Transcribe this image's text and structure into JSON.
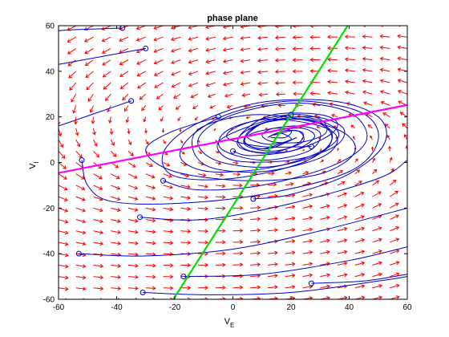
{
  "chart_data": {
    "type": "line",
    "title": "phase plane",
    "xlabel": "V",
    "xlabel_subscript": "E",
    "ylabel": "V",
    "ylabel_subscript": "I",
    "xlim": [
      -60,
      60
    ],
    "ylim": [
      -60,
      60
    ],
    "xticks": [
      -60,
      -40,
      -20,
      0,
      20,
      40,
      60
    ],
    "yticks": [
      -60,
      -40,
      -20,
      0,
      20,
      40,
      60
    ],
    "grid": false,
    "colors": {
      "vector_field": "#ff0000",
      "trajectory": "#0000c8",
      "nullcline_e": "#ff00ff",
      "nullcline_i": "#00dd00",
      "axes": "#000000"
    },
    "series": [
      {
        "type": "line",
        "role": "nullcline",
        "color": "#ff00ff",
        "x": [
          -60,
          60
        ],
        "y": [
          -4.6,
          25.2
        ]
      },
      {
        "type": "line",
        "role": "nullcline",
        "color": "#00dd00",
        "x": [
          -20.5,
          39.5
        ],
        "y": [
          -60,
          60
        ]
      }
    ],
    "vector_field": {
      "x_start": -60,
      "x_step": 6,
      "y_start": -60,
      "y_step": 5,
      "center": [
        12,
        10
      ],
      "spin": 0.1,
      "decay": 0.02,
      "max_len": 6
    },
    "initial_points": [
      [
        -38,
        59
      ],
      [
        -30,
        50
      ],
      [
        -35,
        27
      ],
      [
        -5,
        20
      ],
      [
        20,
        21
      ],
      [
        0,
        5
      ],
      [
        27,
        7
      ],
      [
        -52,
        1
      ],
      [
        -24,
        -8
      ],
      [
        7,
        -16
      ],
      [
        -32,
        -24
      ],
      [
        -53,
        -40
      ],
      [
        -17,
        -50
      ],
      [
        -31,
        -57
      ],
      [
        27,
        -53
      ]
    ],
    "trajectories": [
      {
        "x": [
          -38,
          -58,
          -60
        ],
        "y": [
          59,
          58,
          57
        ]
      },
      {
        "x": [
          -30,
          -60
        ],
        "y": [
          50,
          43
        ]
      },
      {
        "x": [
          -35,
          -60
        ],
        "y": [
          27,
          16
        ]
      },
      {
        "x": [
          -5,
          -22,
          -30,
          -20,
          5,
          30,
          42,
          35,
          10,
          -10,
          -14,
          -8,
          10,
          30,
          36,
          30,
          12,
          -2,
          -4,
          10,
          26,
          30,
          22,
          10,
          5,
          12,
          20,
          16,
          12
        ],
        "y": [
          20,
          13,
          5,
          -4,
          -8,
          -5,
          5,
          15,
          21,
          16,
          7,
          -2,
          -4,
          2,
          10,
          16,
          19,
          14,
          6,
          1,
          5,
          13,
          16,
          14,
          11,
          8,
          10,
          13,
          11
        ]
      },
      {
        "x": [
          20,
          8,
          -5,
          0,
          20,
          35,
          38,
          28,
          12,
          2,
          6,
          20,
          28,
          24,
          14
        ],
        "y": [
          21,
          17,
          9,
          1,
          1,
          7,
          15,
          20,
          18,
          11,
          5,
          5,
          11,
          15,
          14
        ]
      },
      {
        "x": [
          0,
          6,
          20,
          32,
          36,
          30,
          14,
          4,
          2,
          12,
          22,
          24,
          18,
          12
        ],
        "y": [
          5,
          3,
          5,
          11,
          17,
          21,
          21,
          14,
          7,
          4,
          8,
          13,
          14,
          11
        ]
      },
      {
        "x": [
          27,
          10,
          -2,
          4,
          20,
          30,
          32,
          24,
          14,
          10,
          14,
          20,
          18,
          13
        ],
        "y": [
          7,
          7,
          11,
          17,
          21,
          19,
          13,
          9,
          9,
          12,
          15,
          14,
          11,
          11
        ]
      },
      {
        "x": [
          -52,
          -50,
          -42,
          -20,
          10,
          40,
          50,
          44,
          22,
          0,
          -14,
          -18,
          -8,
          14,
          32,
          36,
          24,
          8,
          4,
          14,
          24,
          22,
          14
        ],
        "y": [
          1,
          -10,
          -17,
          -18,
          -14,
          -4,
          10,
          22,
          27,
          22,
          12,
          2,
          -4,
          -2,
          6,
          14,
          20,
          16,
          8,
          5,
          9,
          14,
          12
        ]
      },
      {
        "x": [
          -24,
          -12,
          10,
          35,
          46,
          40,
          20,
          -2,
          -12,
          -6,
          12,
          30,
          34,
          26,
          10,
          4,
          12,
          22
        ],
        "y": [
          -8,
          -12,
          -10,
          -1,
          10,
          22,
          26,
          20,
          10,
          1,
          -2,
          4,
          13,
          19,
          17,
          9,
          6,
          11
        ]
      },
      {
        "x": [
          7,
          20,
          40,
          52,
          50,
          34,
          8,
          -14,
          -24,
          -20,
          0,
          24,
          34,
          28,
          12,
          4,
          10,
          20
        ],
        "y": [
          -16,
          -14,
          -5,
          8,
          20,
          27,
          26,
          16,
          4,
          -6,
          -7,
          0,
          10,
          18,
          18,
          10,
          6,
          10
        ]
      },
      {
        "x": [
          -32,
          -10,
          20,
          50,
          60
        ],
        "y": [
          -24,
          -25,
          -18,
          -7,
          1
        ]
      },
      {
        "x": [
          -53,
          -30,
          0,
          30,
          60
        ],
        "y": [
          -40,
          -41,
          -38,
          -30,
          -20
        ]
      },
      {
        "x": [
          -17,
          10,
          40,
          60
        ],
        "y": [
          -50,
          -49,
          -43,
          -37
        ]
      },
      {
        "x": [
          -31,
          -10,
          20,
          50,
          60
        ],
        "y": [
          -57,
          -58,
          -57,
          -52,
          -50
        ]
      },
      {
        "x": [
          27,
          45,
          60
        ],
        "y": [
          -53,
          -52,
          -49
        ]
      }
    ]
  }
}
